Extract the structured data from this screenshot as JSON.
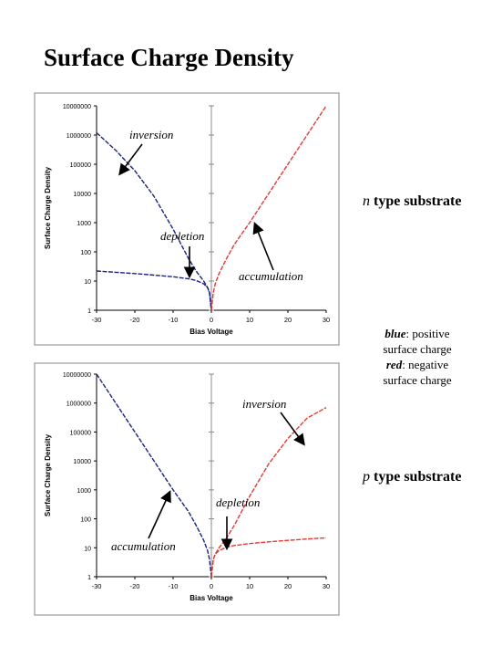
{
  "page_title": "Surface Charge Density",
  "legend_note": {
    "blue_word": "blue",
    "blue_text": ": positive",
    "blue_text2": "surface charge",
    "red_word": "red",
    "red_text": ": negative",
    "red_text2": "surface charge"
  },
  "colors": {
    "blue": "#1a237e",
    "red": "#e53935",
    "axis": "#000000"
  },
  "chart_data": [
    {
      "type": "line",
      "substrate_prefix": "n",
      "substrate_label": " type substrate",
      "xlabel": "Bias Voltage",
      "ylabel": "Surface Charge Density",
      "xlim": [
        -30,
        30
      ],
      "ylim_log": [
        1,
        10000000
      ],
      "xticks": [
        "-30",
        "-20",
        "-10",
        "0",
        "10",
        "20",
        "30"
      ],
      "yticks": [
        "1",
        "10",
        "100",
        "1000",
        "10000",
        "100000",
        "1000000",
        "10000000"
      ],
      "annotations": [
        "inversion",
        "depletion",
        "accumulation"
      ],
      "series": [
        {
          "color": "blue",
          "x": [
            -30,
            -25,
            -20,
            -15,
            -10,
            -6,
            -4,
            -2,
            -1,
            -0.5,
            0
          ],
          "y": [
            22,
            20,
            18,
            16,
            14,
            12,
            10.5,
            8,
            6,
            4,
            1
          ]
        },
        {
          "color": "blue",
          "x": [
            -30,
            -25,
            -20,
            -15,
            -10,
            -6,
            -4,
            -2,
            -1,
            -0.5,
            0
          ],
          "y": [
            1200000,
            300000,
            60000,
            8000,
            600,
            60,
            22,
            10,
            6,
            4,
            1
          ]
        },
        {
          "color": "red",
          "x": [
            0,
            0.5,
            1,
            2,
            4,
            6,
            10,
            15,
            20,
            25,
            30
          ],
          "y": [
            1,
            4,
            8,
            18,
            60,
            180,
            1000,
            10000,
            100000,
            1000000,
            10000000
          ]
        }
      ]
    },
    {
      "type": "line",
      "substrate_prefix": "p",
      "substrate_label": " type substrate",
      "xlabel": "Bias Voltage",
      "ylabel": "Surface Charge Density",
      "xlim": [
        -30,
        30
      ],
      "ylim_log": [
        1,
        10000000
      ],
      "xticks": [
        "-30",
        "-20",
        "-10",
        "0",
        "10",
        "20",
        "30"
      ],
      "yticks": [
        "1",
        "10",
        "100",
        "1000",
        "10000",
        "100000",
        "1000000",
        "10000000"
      ],
      "annotations": [
        "inversion",
        "depletion",
        "accumulation"
      ],
      "series": [
        {
          "color": "blue",
          "x": [
            -30,
            -25,
            -20,
            -15,
            -10,
            -6,
            -4,
            -2,
            -1,
            -0.5,
            0
          ],
          "y": [
            10000000,
            1000000,
            100000,
            10000,
            1000,
            180,
            60,
            18,
            8,
            4,
            1
          ]
        },
        {
          "color": "red",
          "x": [
            0,
            0.5,
            1,
            2,
            4,
            6,
            10,
            15,
            20,
            25,
            30
          ],
          "y": [
            1,
            4,
            6,
            10,
            22,
            60,
            600,
            8000,
            60000,
            300000,
            700000
          ]
        },
        {
          "color": "red",
          "x": [
            0,
            0.5,
            1,
            2,
            4,
            6,
            10,
            15,
            20,
            25,
            30
          ],
          "y": [
            1,
            4,
            6,
            8,
            10.5,
            12,
            14,
            16,
            18,
            20,
            22
          ]
        }
      ]
    }
  ]
}
